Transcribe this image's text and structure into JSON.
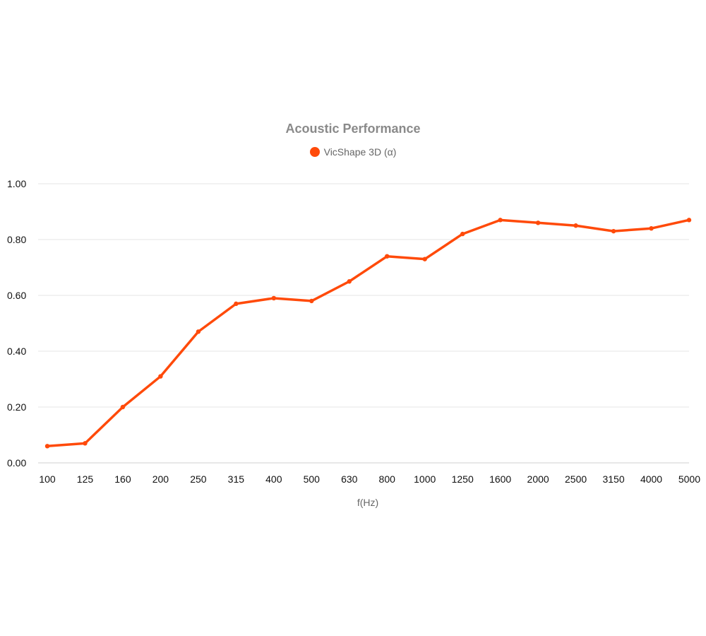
{
  "chart_data": {
    "type": "line",
    "title": "Acoustic Performance",
    "xlabel": "f(Hz)",
    "ylabel": "",
    "categories": [
      "100",
      "125",
      "160",
      "200",
      "250",
      "315",
      "400",
      "500",
      "630",
      "800",
      "1000",
      "1250",
      "1600",
      "2000",
      "2500",
      "3150",
      "4000",
      "5000"
    ],
    "series": [
      {
        "name": "VicShape 3D (α)",
        "color": "#ff4a0a",
        "values": [
          0.06,
          0.07,
          0.2,
          0.31,
          0.47,
          0.57,
          0.59,
          0.58,
          0.65,
          0.74,
          0.73,
          0.82,
          0.87,
          0.86,
          0.85,
          0.83,
          0.84,
          0.87
        ]
      }
    ],
    "ylim": [
      0,
      1
    ],
    "yticks": [
      "0.00",
      "0.20",
      "0.40",
      "0.60",
      "0.80",
      "1.00"
    ],
    "grid": true,
    "legend_position": "top-center"
  }
}
